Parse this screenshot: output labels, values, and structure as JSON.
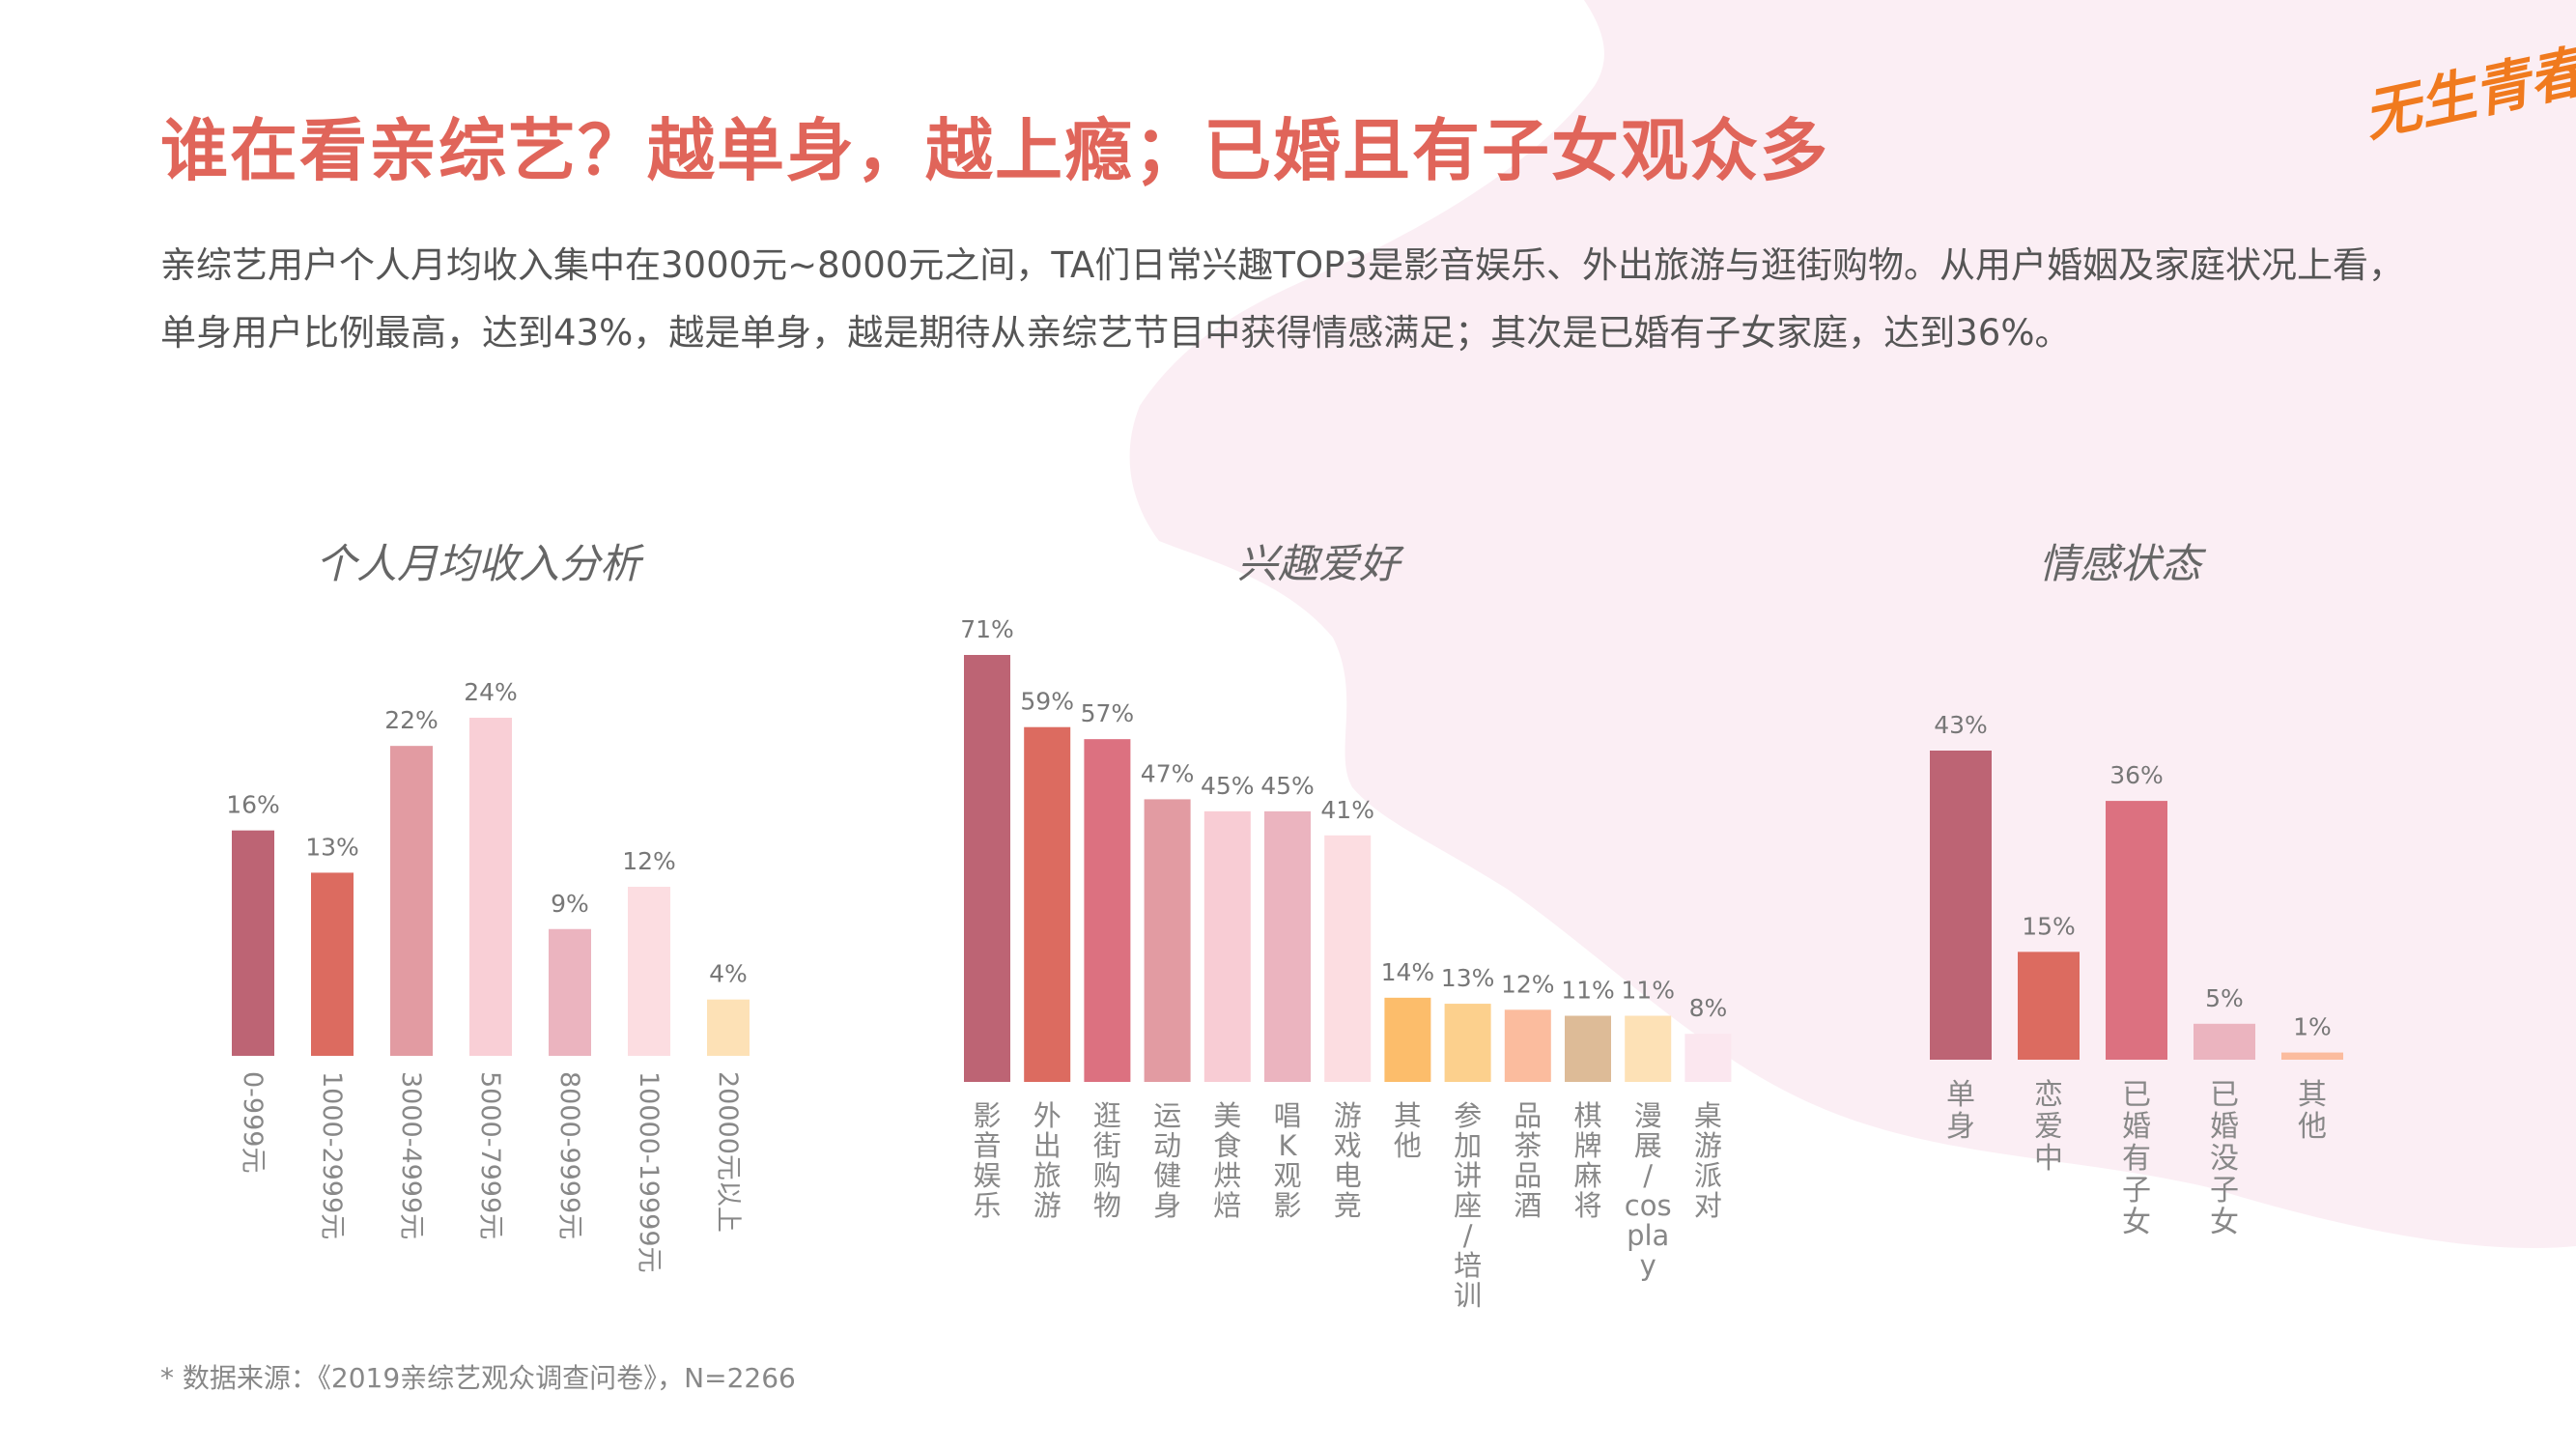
{
  "page": {
    "title": "谁在看亲综艺？越单身，越上瘾；已婚且有子女观众多",
    "description": [
      "亲综艺用户个人月均收入集中在3000元~8000元之间，TA们日常兴趣TOP3是影音娱乐、外出旅游与逛街购物。从用户婚姻及家庭状况上看，",
      "单身用户比例最高，达到43%，越是单身，越是期待从亲综艺节目中获得情感满足；其次是已婚有子女家庭，达到36%。"
    ],
    "logo_text": "无生青春",
    "source": "* 数据来源：《2019亲综艺观众调查问卷》，N=2266",
    "background_color": "#fbeef4"
  },
  "chart_data": [
    {
      "type": "bar",
      "title": "个人月均收入分析",
      "categories": [
        "0-999元",
        "1000-2999元",
        "3000-4999元",
        "5000-7999元",
        "8000-9999元",
        "10000-19999元",
        "20000元以上"
      ],
      "values": [
        16,
        13,
        22,
        24,
        9,
        12,
        4
      ],
      "value_labels": [
        "16%",
        "13%",
        "22%",
        "24%",
        "9%",
        "12%",
        "4%"
      ],
      "colors": [
        "#bd6474",
        "#dc6b60",
        "#e29ba2",
        "#f9cfd6",
        "#ebb4bf",
        "#fcdde1",
        "#fde1b6"
      ],
      "ylim": [
        0,
        24
      ]
    },
    {
      "type": "bar",
      "title": "兴趣爱好",
      "categories": [
        "影音娱乐",
        "外出旅游",
        "逛街购物",
        "运动健身",
        "美食烘焙",
        "唱K观影",
        "游戏电竞",
        "其他",
        "参加讲座/培训",
        "品茶品酒",
        "棋牌麻将",
        "漫展/cosplay",
        "桌游派对"
      ],
      "values": [
        71,
        59,
        57,
        47,
        45,
        45,
        41,
        14,
        13,
        12,
        11,
        11,
        8
      ],
      "value_labels": [
        "71%",
        "59%",
        "57%",
        "47%",
        "45%",
        "45%",
        "41%",
        "14%",
        "13%",
        "12%",
        "11%",
        "11%",
        "8%"
      ],
      "colors": [
        "#bd6474",
        "#dc6b60",
        "#dc7180",
        "#e29ba2",
        "#f8ccd4",
        "#ebb4bf",
        "#fcdde1",
        "#fcbd6b",
        "#fcd08d",
        "#fbbc9e",
        "#ddbb97",
        "#fde1b6",
        "#fbe7ef"
      ],
      "ylim": [
        0,
        71
      ]
    },
    {
      "type": "bar",
      "title": "情感状态",
      "categories": [
        "单身",
        "恋爱中",
        "已婚有子女",
        "已婚没子女",
        "其他"
      ],
      "values": [
        43,
        15,
        36,
        5,
        1
      ],
      "value_labels": [
        "43%",
        "15%",
        "36%",
        "5%",
        "1%"
      ],
      "colors": [
        "#bd6474",
        "#dc6b60",
        "#dc7180",
        "#ebb4bf",
        "#fbbc9e"
      ],
      "ylim": [
        0,
        43
      ]
    }
  ]
}
